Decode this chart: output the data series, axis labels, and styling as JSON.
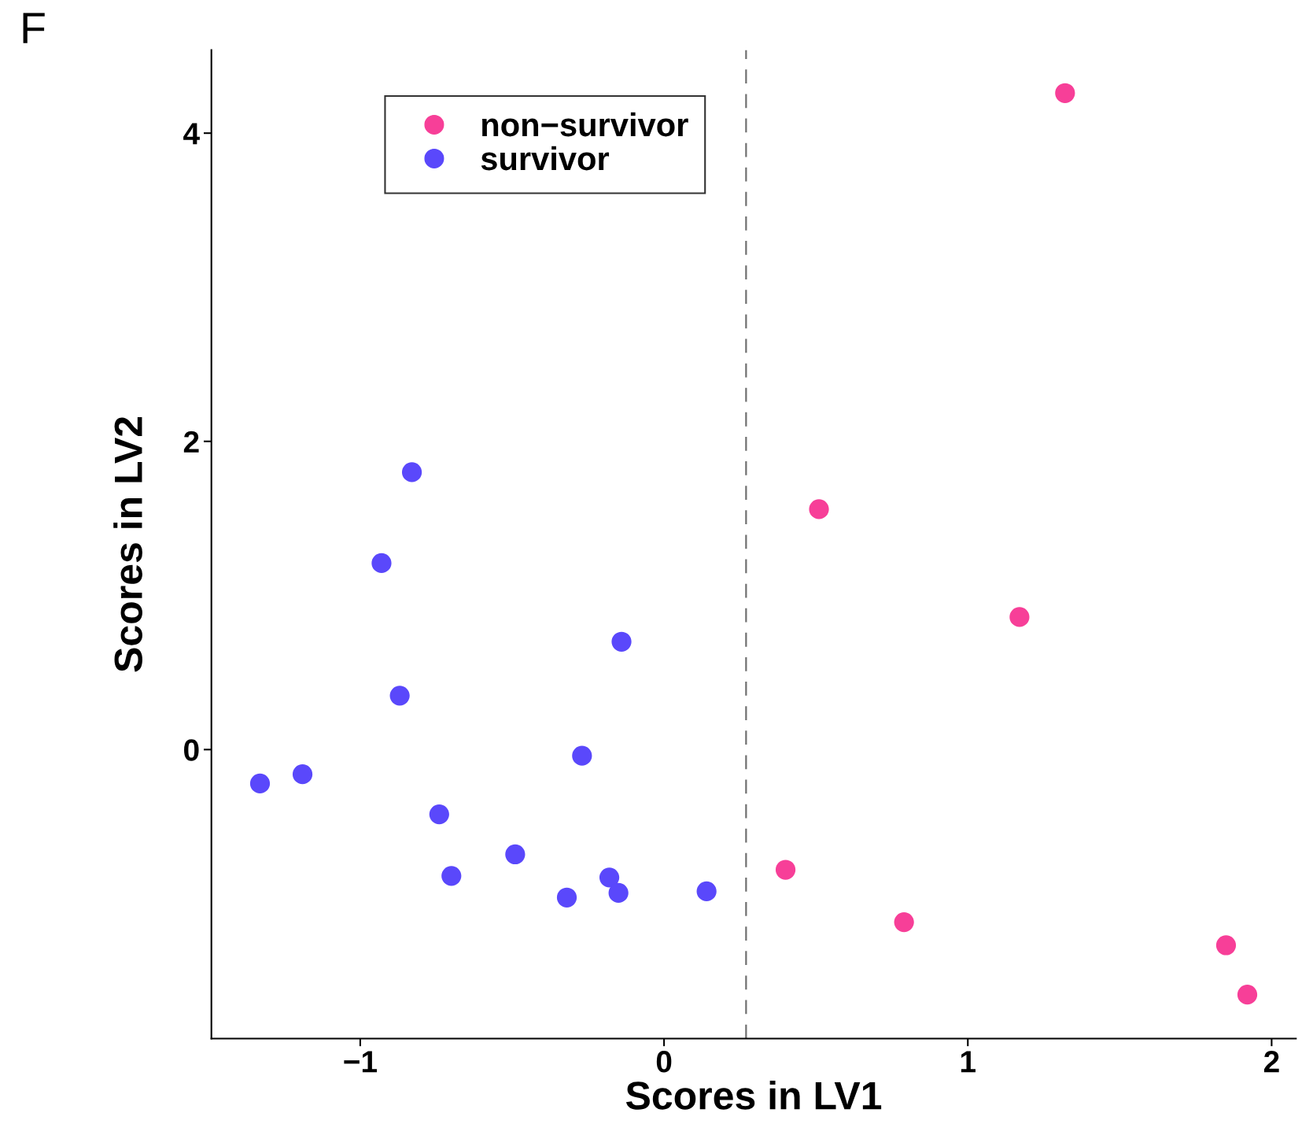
{
  "chart_data": {
    "type": "scatter",
    "xlabel": "Scores in LV1",
    "ylabel": "Scores in LV2",
    "annotations": [
      "F"
    ],
    "xlim": [
      -1.49,
      2.08
    ],
    "ylim": [
      -1.875,
      4.54
    ],
    "xticks": [
      {
        "value": -1,
        "label": "−1"
      },
      0,
      1,
      2
    ],
    "yticks": [
      0,
      2,
      4
    ],
    "grid": false,
    "legend": "top left",
    "marker": "circle",
    "ref_lines": [
      {
        "axis": "x",
        "value": 0.27,
        "label": null,
        "color": "#707070",
        "line_style": "dashed"
      }
    ],
    "series": [
      {
        "name": "non−survivor",
        "color": "#f73f98",
        "x": [
          1.32,
          0.51,
          1.17,
          0.4,
          0.79,
          1.85,
          1.92
        ],
        "values": [
          4.26,
          1.56,
          0.86,
          -0.78,
          -1.12,
          -1.27,
          -1.59
        ]
      },
      {
        "name": "survivor",
        "color": "#5a48fb",
        "x": [
          -1.33,
          -1.19,
          -0.93,
          -0.87,
          -0.83,
          -0.74,
          -0.7,
          -0.49,
          -0.32,
          -0.27,
          -0.18,
          -0.15,
          -0.14,
          0.14
        ],
        "values": [
          -0.22,
          -0.16,
          1.21,
          0.35,
          1.8,
          -0.42,
          -0.82,
          -0.68,
          -0.96,
          -0.04,
          -0.83,
          -0.93,
          0.7,
          -0.92
        ]
      }
    ]
  }
}
